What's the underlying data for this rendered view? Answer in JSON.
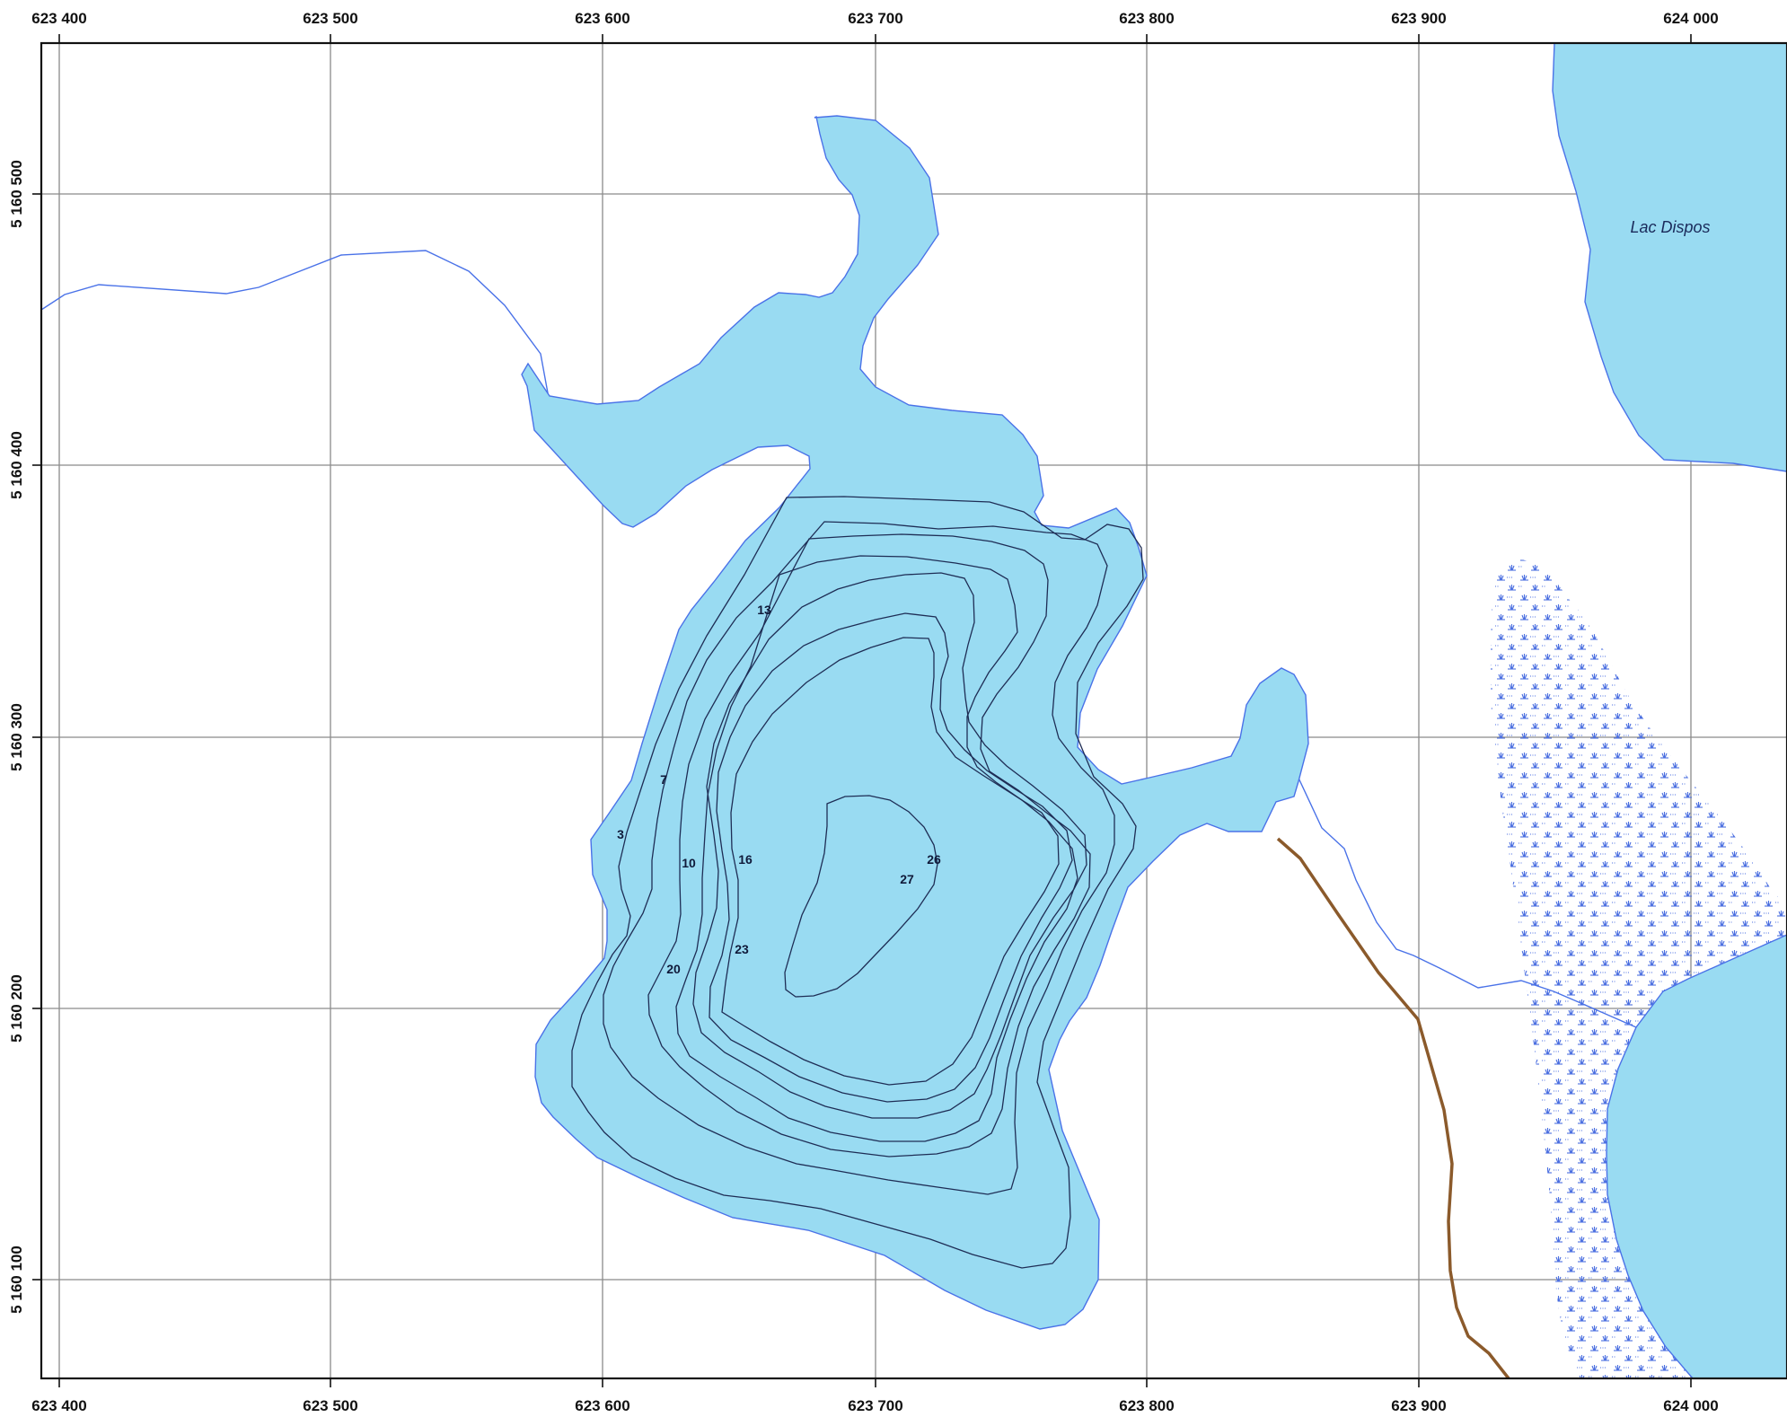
{
  "map": {
    "colors": {
      "water": "#99dbf2",
      "shoreline": "#4a72e8",
      "contour": "#1e2d55",
      "grid": "#8a8a8a",
      "trail": "#8b5a2b",
      "marsh": "#4a6ee0"
    },
    "x_ticks": [
      "623 400",
      "623 500",
      "623 600",
      "623 700",
      "623 800",
      "623 900",
      "624 000"
    ],
    "y_ticks": [
      "5 160 500",
      "5 160 400",
      "5 160 300",
      "5 160 200",
      "5 160 100"
    ],
    "lake_name": "Lac Dispos",
    "depth_labels": [
      "3",
      "7",
      "10",
      "13",
      "16",
      "20",
      "23",
      "26",
      "27"
    ],
    "icons": {
      "marsh": "marsh-symbol-icon"
    }
  }
}
